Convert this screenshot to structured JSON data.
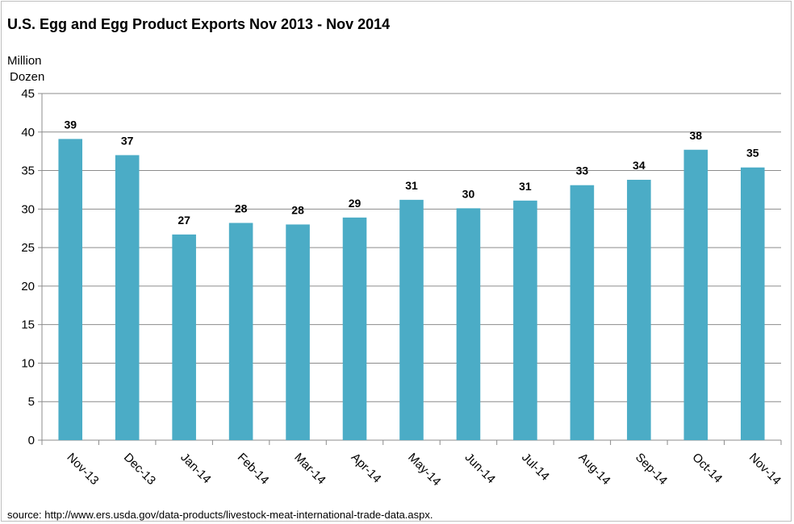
{
  "chart_data": {
    "type": "bar",
    "title": "U.S. Egg and Egg Product Exports Nov 2013 - Nov 2014",
    "ylabel": [
      "Million",
      "Dozen"
    ],
    "xlabel": "",
    "categories": [
      "Nov-13",
      "Dec-13",
      "Jan-14",
      "Feb-14",
      "Mar-14",
      "Apr-14",
      "May-14",
      "Jun-14",
      "Jul-14",
      "Aug-14",
      "Sep-14",
      "Oct-14",
      "Nov-14"
    ],
    "values": [
      39.1,
      37.0,
      26.7,
      28.2,
      28.0,
      28.9,
      31.2,
      30.1,
      31.1,
      33.1,
      33.8,
      37.7,
      35.4
    ],
    "data_labels": [
      "39",
      "37",
      "27",
      "28",
      "28",
      "29",
      "31",
      "30",
      "31",
      "33",
      "34",
      "38",
      "35"
    ],
    "ylim": [
      0,
      45
    ],
    "yticks": [
      0,
      5,
      10,
      15,
      20,
      25,
      30,
      35,
      40,
      45
    ],
    "grid": true,
    "bar_color": "#4bacc6",
    "source": "source: http://www.ers.usda.gov/data-products/livestock-meat-international-trade-data.aspx."
  }
}
